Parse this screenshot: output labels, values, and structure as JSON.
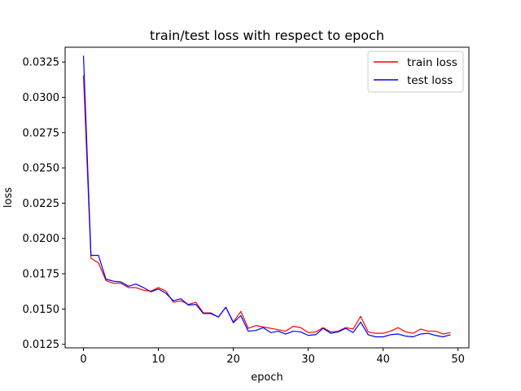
{
  "chart_data": {
    "type": "line",
    "title": "train/test loss with respect to epoch",
    "xlabel": "epoch",
    "ylabel": "loss",
    "xlim": [
      -2.45,
      51.45
    ],
    "ylim": [
      0.01225,
      0.03355
    ],
    "xticks": [
      0,
      10,
      20,
      30,
      40,
      50
    ],
    "xtick_labels": [
      "0",
      "10",
      "20",
      "30",
      "40",
      "50"
    ],
    "yticks": [
      0.0125,
      0.015,
      0.0175,
      0.02,
      0.0225,
      0.025,
      0.0275,
      0.03,
      0.0325
    ],
    "ytick_labels": [
      "0.0125",
      "0.0150",
      "0.0175",
      "0.0200",
      "0.0225",
      "0.0250",
      "0.0275",
      "0.0300",
      "0.0325"
    ],
    "grid": false,
    "legend_position": "top-right",
    "x": [
      0,
      1,
      2,
      3,
      4,
      5,
      6,
      7,
      8,
      9,
      10,
      11,
      12,
      13,
      14,
      15,
      16,
      17,
      18,
      19,
      20,
      21,
      22,
      23,
      24,
      25,
      26,
      27,
      28,
      29,
      30,
      31,
      32,
      33,
      34,
      35,
      36,
      37,
      38,
      39,
      40,
      41,
      42,
      43,
      44,
      45,
      46,
      47,
      48,
      49
    ],
    "series": [
      {
        "name": "train loss",
        "color": "#ff0000",
        "values": [
          0.03155,
          0.0186,
          0.01827,
          0.01702,
          0.01682,
          0.01682,
          0.01652,
          0.01652,
          0.01633,
          0.01627,
          0.01652,
          0.01627,
          0.01548,
          0.01558,
          0.01533,
          0.01548,
          0.01473,
          0.01473,
          0.01443,
          0.01513,
          0.01408,
          0.01483,
          0.01363,
          0.01383,
          0.01373,
          0.01363,
          0.01353,
          0.01343,
          0.01378,
          0.01368,
          0.01333,
          0.01338,
          0.01368,
          0.01338,
          0.01343,
          0.01368,
          0.01358,
          0.01448,
          0.01338,
          0.01328,
          0.01328,
          0.01343,
          0.01368,
          0.01338,
          0.01328,
          0.01358,
          0.01343,
          0.01343,
          0.01323,
          0.01333
        ]
      },
      {
        "name": "test loss",
        "color": "#0000ff",
        "values": [
          0.03295,
          0.0188,
          0.0188,
          0.01712,
          0.01697,
          0.01692,
          0.01662,
          0.01677,
          0.01652,
          0.01622,
          0.01642,
          0.01612,
          0.01558,
          0.01573,
          0.01528,
          0.01533,
          0.01468,
          0.01468,
          0.01443,
          0.01513,
          0.01403,
          0.01453,
          0.01343,
          0.01348,
          0.01368,
          0.01333,
          0.01343,
          0.01323,
          0.01343,
          0.01338,
          0.01313,
          0.01318,
          0.01363,
          0.01328,
          0.01338,
          0.01363,
          0.01333,
          0.01408,
          0.01318,
          0.01303,
          0.01303,
          0.01318,
          0.01323,
          0.01308,
          0.01303,
          0.01323,
          0.01328,
          0.01313,
          0.01303,
          0.01318
        ]
      }
    ]
  }
}
